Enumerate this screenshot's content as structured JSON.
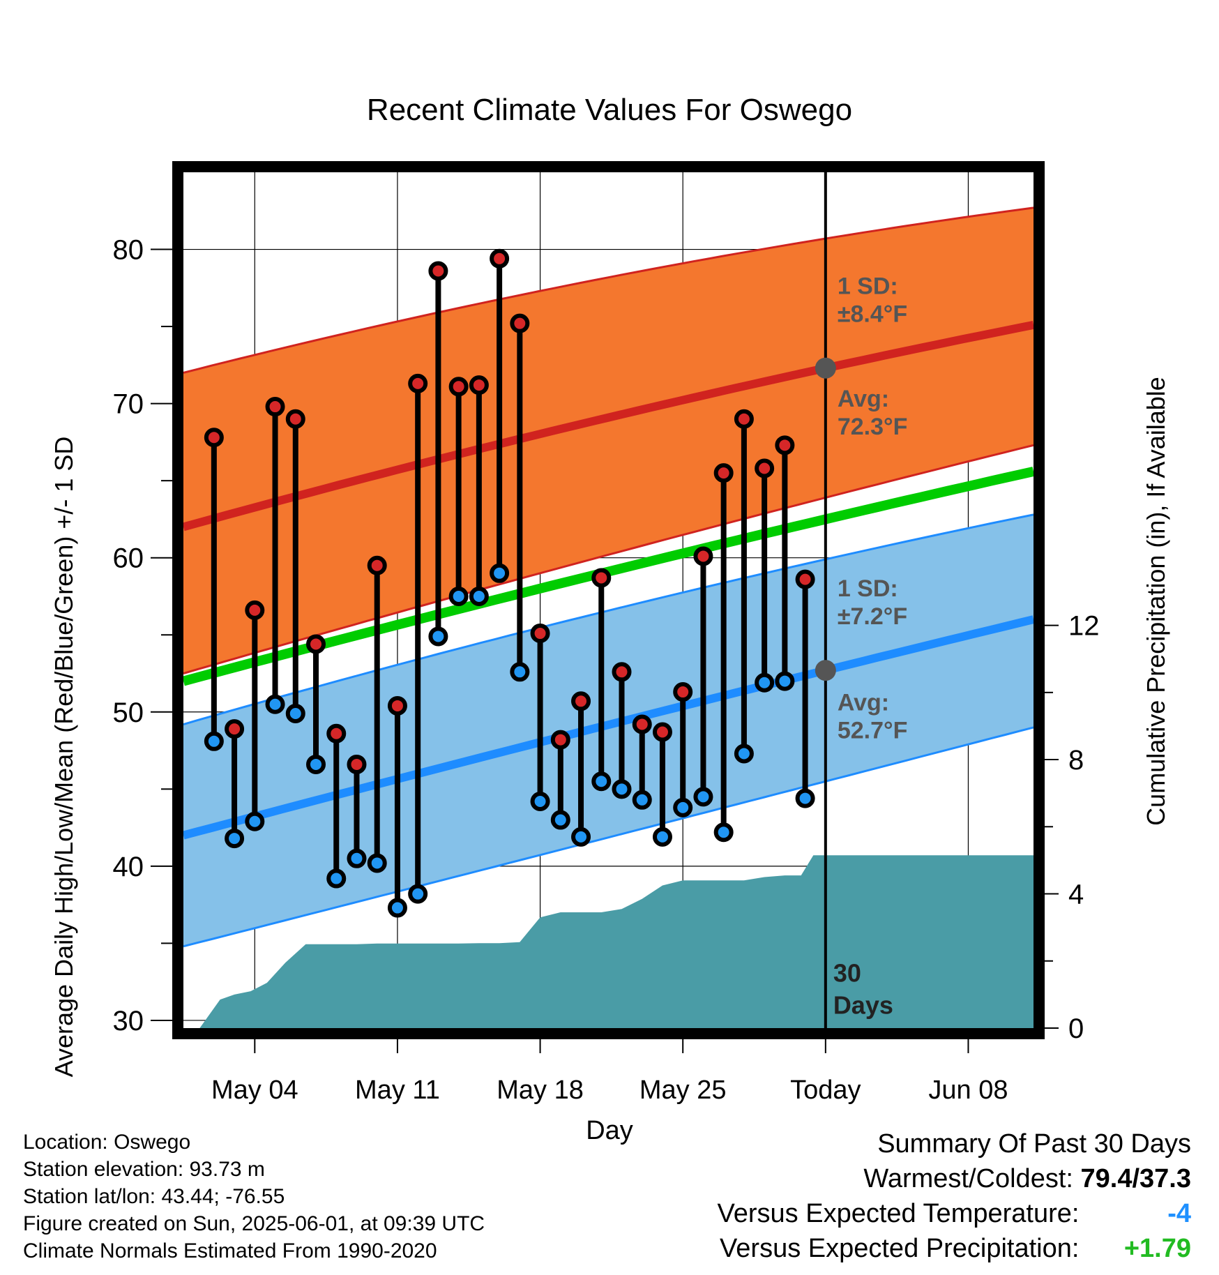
{
  "chart_data": {
    "type": "line",
    "title": "Recent Climate Values For Oswego",
    "xlabel": "Day",
    "ylabel": "Average Daily High/Low/Mean (Red/Blue/Green) +/- 1 SD",
    "y2label": "Cumulative Precipitation (in), If Available",
    "ylim": [
      29.5,
      85
    ],
    "y2lim": [
      0,
      25.5
    ],
    "xlim": [
      0.5,
      42.2
    ],
    "y_ticks": [
      30,
      40,
      50,
      60,
      70,
      80
    ],
    "y2_ticks": [
      0,
      4,
      8,
      12
    ],
    "x_ticks": [
      {
        "day": 4,
        "label": "May 04"
      },
      {
        "day": 11,
        "label": "May 11"
      },
      {
        "day": 18,
        "label": "May 18"
      },
      {
        "day": 25,
        "label": "May 25"
      },
      {
        "day": 32,
        "label": "Today"
      },
      {
        "day": 39,
        "label": "Jun 08"
      }
    ],
    "today_day": 32,
    "today_label": "30\nDays",
    "normals": {
      "x": [
        0.5,
        32,
        42.2
      ],
      "high_avg": [
        62,
        72.3,
        75.1
      ],
      "high_upper": [
        72,
        80.7,
        82.7
      ],
      "high_lower": [
        52.5,
        63.9,
        67.3
      ],
      "low_avg": [
        42,
        52.7,
        56
      ],
      "low_upper": [
        49.2,
        59.9,
        62.8
      ],
      "low_lower": [
        34.8,
        45.5,
        49
      ],
      "mean": [
        52,
        62.5,
        65.6
      ]
    },
    "annotations": {
      "high_sd": "1 SD:\n±8.4°F",
      "high_avg": "Avg:\n72.3°F",
      "low_sd": "1 SD:\n±7.2°F",
      "low_avg": "Avg:\n52.7°F"
    },
    "series": [
      {
        "name": "High",
        "days": [
          2,
          3,
          4,
          5,
          6,
          7,
          8,
          9,
          10,
          11,
          12,
          13,
          14,
          15,
          16,
          17,
          18,
          19,
          20,
          21,
          22,
          23,
          24,
          25,
          26,
          27,
          28,
          29,
          30,
          31
        ],
        "values": [
          67.8,
          48.9,
          56.6,
          69.8,
          69.0,
          54.4,
          48.6,
          46.6,
          59.5,
          50.4,
          71.3,
          78.6,
          71.1,
          71.2,
          79.4,
          75.2,
          55.1,
          48.2,
          50.7,
          58.7,
          52.6,
          49.2,
          48.7,
          51.3,
          60.1,
          65.5,
          69.0,
          65.8,
          67.3,
          58.6
        ]
      },
      {
        "name": "Low",
        "days": [
          2,
          3,
          4,
          5,
          6,
          7,
          8,
          9,
          10,
          11,
          12,
          13,
          14,
          15,
          16,
          17,
          18,
          19,
          20,
          21,
          22,
          23,
          24,
          25,
          26,
          27,
          28,
          29,
          30,
          31
        ],
        "values": [
          48.1,
          41.8,
          42.9,
          50.5,
          49.9,
          46.6,
          39.2,
          40.5,
          40.2,
          37.3,
          38.2,
          54.9,
          57.5,
          57.5,
          59.0,
          52.6,
          44.2,
          43.0,
          41.9,
          45.5,
          45.0,
          44.3,
          41.9,
          43.8,
          44.5,
          42.2,
          47.3,
          51.9,
          52.0,
          44.4
        ]
      },
      {
        "name": "Precipitation",
        "x": [
          1.3,
          2.3,
          3.0,
          3.8,
          4.6,
          5.5,
          6.5,
          8,
          9,
          10,
          11,
          12,
          13,
          14,
          15,
          16,
          17,
          18,
          19,
          20,
          21,
          22,
          23,
          24,
          25,
          26,
          27,
          28,
          29,
          30,
          30.8,
          31.4,
          32,
          33,
          34,
          35,
          36,
          37,
          38,
          39,
          40,
          41,
          42.2
        ],
        "values": [
          0,
          0.85,
          1.0,
          1.1,
          1.35,
          1.95,
          2.5,
          2.5,
          2.5,
          2.52,
          2.52,
          2.52,
          2.52,
          2.52,
          2.53,
          2.53,
          2.56,
          3.3,
          3.45,
          3.45,
          3.45,
          3.55,
          3.85,
          4.25,
          4.4,
          4.4,
          4.4,
          4.4,
          4.5,
          4.55,
          4.55,
          5.15,
          5.15,
          5.15,
          5.15,
          5.15,
          5.15,
          5.15,
          5.15,
          5.15,
          5.15,
          5.15,
          5.15
        ]
      }
    ],
    "colors": {
      "high_band": "#f4772e",
      "high_line": "#d0231f",
      "low_band": "#85c1e9",
      "low_line": "#1e8cff",
      "mean_line": "#00cc00",
      "precip": "#4a9ca6",
      "high_marker": "#d62728",
      "low_marker": "#2196f3",
      "annotation": "#555555"
    }
  },
  "footer_left": [
    "Location: Oswego",
    "Station elevation: 93.73 m",
    "Station lat/lon: 43.44; -76.55",
    "Figure created on Sun, 2025-06-01, at 09:39 UTC",
    "Climate Normals Estimated From 1990-2020"
  ],
  "summary": {
    "title": "Summary Of Past 30 Days",
    "warmest_label": "Warmest/Coldest:",
    "warmest_value": "79.4/37.3",
    "temp_label": "Versus Expected Temperature:",
    "temp_value": "-4",
    "precip_label": "Versus Expected Precipitation:",
    "precip_value": "+1.79"
  }
}
